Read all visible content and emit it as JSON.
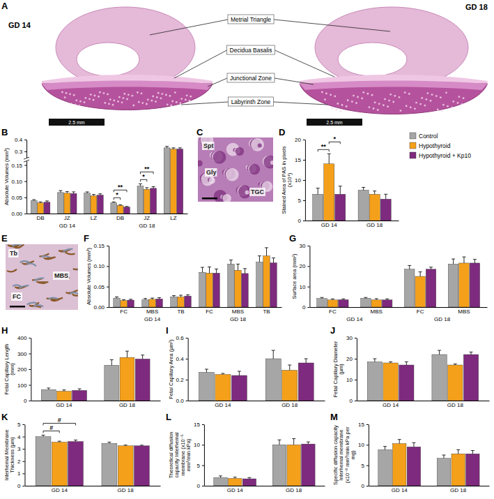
{
  "figure_a": {
    "panel": "A",
    "images": [
      {
        "label": "GD 14",
        "scale_bar": "2.5 mm"
      },
      {
        "label": "GD 18",
        "scale_bar": "2.5 mm"
      }
    ],
    "regions": [
      "Metrial Triangle",
      "Decidua Basalis",
      "Junctional Zone",
      "Labyrinth Zone"
    ]
  },
  "micrographs": [
    {
      "panel": "C",
      "labels": [
        "Spt",
        "Gly",
        "TGC"
      ]
    },
    {
      "panel": "E",
      "labels": [
        "Tb",
        "MBS",
        "FC"
      ]
    }
  ],
  "chart_data": [
    {
      "panel": "B",
      "type": "bar",
      "ylabel": "Absolute Volumes (mm³)",
      "categories": [
        "DB",
        "JZ",
        "LZ",
        "DB",
        "JZ",
        "LZ"
      ],
      "x_groups": [
        "GD 14",
        "GD 18"
      ],
      "ylim": [
        0,
        0.4
      ],
      "y_break": [
        0.16,
        0.25
      ],
      "yticks": [
        {
          "value": 0,
          "label": "0.00"
        },
        0.05,
        {
          "value": 0.1,
          "label": "0.10"
        },
        0.15,
        0.3,
        0.4
      ],
      "series": [
        {
          "color": "#a6a6a6",
          "values": [
            0.04,
            0.065,
            0.063,
            0.033,
            0.085,
            0.33
          ],
          "errors": [
            0.003,
            0.006,
            0.004,
            0.003,
            0.007,
            0.012
          ]
        },
        {
          "color": "#f5a01a",
          "values": [
            0.033,
            0.063,
            0.055,
            0.025,
            0.075,
            0.32
          ],
          "errors": [
            0.003,
            0.005,
            0.004,
            0.002,
            0.005,
            0.01
          ]
        },
        {
          "color": "#7e2a7e",
          "values": [
            0.035,
            0.062,
            0.057,
            0.02,
            0.078,
            0.32
          ],
          "errors": [
            0.004,
            0.005,
            0.004,
            0.002,
            0.005,
            0.01
          ]
        }
      ],
      "brackets": [
        {
          "label": "*",
          "category": 3,
          "series": [
            0,
            1
          ]
        },
        {
          "label": "**",
          "category": 3,
          "series": [
            0,
            2
          ]
        },
        {
          "label": "*",
          "category": 4,
          "series": [
            0,
            1
          ]
        },
        {
          "label": "**",
          "category": 4,
          "series": [
            0,
            2
          ]
        }
      ]
    },
    {
      "panel": "D",
      "type": "bar",
      "ylabel": "Stained Area of PAS in pixels (x10⁴)",
      "categories": [
        "GD 14",
        "GD 18"
      ],
      "ylim": [
        0,
        20
      ],
      "yticks": [
        0,
        5,
        10,
        15,
        20
      ],
      "legend": "right",
      "series": [
        {
          "name": "Control",
          "color": "#a6a6a6",
          "values": [
            6.5,
            7.5
          ],
          "errors": [
            1.5,
            0.7
          ]
        },
        {
          "name": "Hypothyroid",
          "color": "#f5a01a",
          "values": [
            14,
            6.5
          ],
          "errors": [
            2.5,
            0.8
          ]
        },
        {
          "name": "Hypothyroid + Kp10",
          "color": "#7e2a7e",
          "values": [
            6.5,
            5.3
          ],
          "errors": [
            2,
            1.2
          ]
        }
      ],
      "brackets": [
        {
          "label": "**",
          "category": 0,
          "series": [
            0,
            1
          ]
        },
        {
          "label": "*",
          "category": 0,
          "series": [
            1,
            2
          ]
        }
      ]
    },
    {
      "panel": "F",
      "type": "bar",
      "ylabel": "Absolute Volumes (mm³)",
      "categories": [
        "FC",
        "MBS",
        "TB",
        "FC",
        "MBS",
        "TB"
      ],
      "x_groups": [
        "GD 14",
        "GD 18"
      ],
      "ylim": [
        0,
        0.15
      ],
      "yticks": [
        {
          "value": 0,
          "label": "0.00"
        },
        0.05,
        {
          "value": 0.1,
          "label": "0.10"
        },
        0.15
      ],
      "series": [
        {
          "color": "#a6a6a6",
          "values": [
            0.022,
            0.018,
            0.025,
            0.085,
            0.105,
            0.11
          ],
          "errors": [
            0.003,
            0.003,
            0.003,
            0.012,
            0.01,
            0.015
          ]
        },
        {
          "color": "#f5a01a",
          "values": [
            0.016,
            0.019,
            0.025,
            0.083,
            0.09,
            0.125
          ],
          "errors": [
            0.002,
            0.003,
            0.004,
            0.015,
            0.015,
            0.02
          ]
        },
        {
          "color": "#7e2a7e",
          "values": [
            0.017,
            0.02,
            0.027,
            0.083,
            0.082,
            0.108
          ],
          "errors": [
            0.002,
            0.003,
            0.003,
            0.01,
            0.012,
            0.012
          ]
        }
      ]
    },
    {
      "panel": "G",
      "type": "bar",
      "ylabel": "Surface area (mm²)",
      "categories": [
        "FC",
        "MBS",
        "FC",
        "MBS"
      ],
      "x_groups": [
        "GD 14",
        "GD 18"
      ],
      "ylim": [
        0,
        30
      ],
      "yticks": [
        0,
        10,
        20,
        30
      ],
      "series": [
        {
          "color": "#a6a6a6",
          "values": [
            4.2,
            4.3,
            18.5,
            21
          ],
          "errors": [
            0.5,
            0.4,
            1.8,
            2.5
          ]
        },
        {
          "color": "#f5a01a",
          "values": [
            3.5,
            3.5,
            15,
            21.5
          ],
          "errors": [
            0.5,
            0.6,
            2.2,
            3
          ]
        },
        {
          "color": "#7e2a7e",
          "values": [
            3.6,
            3.5,
            18.5,
            21.5
          ],
          "errors": [
            0.4,
            0.5,
            1,
            1.8
          ]
        }
      ]
    },
    {
      "panel": "H",
      "type": "bar",
      "ylabel": "Fetal Capillary Length (mm)",
      "categories": [
        "GD 14",
        "GD 18"
      ],
      "ylim": [
        0,
        400
      ],
      "yticks": [
        0,
        100,
        200,
        300,
        400
      ],
      "series": [
        {
          "color": "#a6a6a6",
          "values": [
            70,
            225
          ],
          "errors": [
            10,
            35
          ]
        },
        {
          "color": "#f5a01a",
          "values": [
            60,
            275
          ],
          "errors": [
            8,
            40
          ]
        },
        {
          "color": "#7e2a7e",
          "values": [
            65,
            265
          ],
          "errors": [
            10,
            25
          ]
        }
      ]
    },
    {
      "panel": "I",
      "type": "bar",
      "ylabel": "Fetal Capillary Area (µm²)",
      "categories": [
        "GD 14",
        "GD 18"
      ],
      "ylim": [
        0,
        0.6
      ],
      "yticks": [
        {
          "value": 0,
          "label": "0.0"
        },
        0.2,
        0.4,
        0.6
      ],
      "series": [
        {
          "color": "#a6a6a6",
          "values": [
            0.27,
            0.4
          ],
          "errors": [
            0.03,
            0.08
          ]
        },
        {
          "color": "#f5a01a",
          "values": [
            0.25,
            0.29
          ],
          "errors": [
            0.01,
            0.05
          ]
        },
        {
          "color": "#7e2a7e",
          "values": [
            0.24,
            0.36
          ],
          "errors": [
            0.04,
            0.04
          ]
        }
      ]
    },
    {
      "panel": "J",
      "type": "bar",
      "ylabel": "Fetal Capillary Diameter (µm)",
      "categories": [
        "GD 14",
        "GD 18"
      ],
      "ylim": [
        0,
        30
      ],
      "yticks": [
        0,
        10,
        20,
        30
      ],
      "series": [
        {
          "color": "#a6a6a6",
          "values": [
            18.5,
            22
          ],
          "errors": [
            1.5,
            2
          ]
        },
        {
          "color": "#f5a01a",
          "values": [
            18,
            17
          ],
          "errors": [
            0.5,
            0.5
          ]
        },
        {
          "color": "#7e2a7e",
          "values": [
            17,
            22
          ],
          "errors": [
            1.5,
            1.2
          ]
        }
      ]
    },
    {
      "panel": "K",
      "type": "bar",
      "ylabel": "Interhemal Membrane Thickness (µm)",
      "categories": [
        "GD 14",
        "GD 18"
      ],
      "ylim": [
        0,
        5
      ],
      "yticks": [
        0,
        1,
        2,
        3,
        4,
        5
      ],
      "series": [
        {
          "color": "#a6a6a6",
          "values": [
            4,
            3.45
          ],
          "errors": [
            0.12,
            0.1
          ]
        },
        {
          "color": "#f5a01a",
          "values": [
            3.55,
            3.25
          ],
          "errors": [
            0.08,
            0.06
          ]
        },
        {
          "color": "#7e2a7e",
          "values": [
            3.6,
            3.25
          ],
          "errors": [
            0.12,
            0.05
          ]
        }
      ],
      "brackets": [
        {
          "label": "#",
          "category": 0,
          "series": [
            0,
            1
          ]
        },
        {
          "label": "#",
          "category": 0,
          "series": [
            0,
            2
          ]
        }
      ]
    },
    {
      "panel": "L",
      "type": "bar",
      "ylabel": "Theoretical diffusion capacity Interhemal membrane (x10⁻⁵ mm³/min kPa)",
      "categories": [
        "GD 14",
        "GD 18"
      ],
      "ylim": [
        0,
        15
      ],
      "yticks": [
        0,
        5,
        10,
        15
      ],
      "series": [
        {
          "color": "#a6a6a6",
          "values": [
            2,
            10
          ],
          "errors": [
            0.4,
            1.2
          ]
        },
        {
          "color": "#f5a01a",
          "values": [
            1.8,
            10
          ],
          "errors": [
            0.3,
            1.5
          ]
        },
        {
          "color": "#7e2a7e",
          "values": [
            1.7,
            10.2
          ],
          "errors": [
            0.3,
            0.5
          ]
        }
      ]
    },
    {
      "panel": "M",
      "type": "bar",
      "ylabel": "Specific diffusion capacity Interhemal membrane (x10⁻⁸ mm³/min kPa per mg)",
      "categories": [
        "GD 14",
        "GD 18"
      ],
      "ylim": [
        0,
        15
      ],
      "yticks": [
        0,
        5,
        10,
        15
      ],
      "series": [
        {
          "color": "#a6a6a6",
          "values": [
            8.8,
            6.7
          ],
          "errors": [
            0.8,
            0.8
          ]
        },
        {
          "color": "#f5a01a",
          "values": [
            10.3,
            7.8
          ],
          "errors": [
            1,
            1
          ]
        },
        {
          "color": "#7e2a7e",
          "values": [
            9.5,
            7.8
          ],
          "errors": [
            1,
            0.8
          ]
        }
      ]
    }
  ]
}
